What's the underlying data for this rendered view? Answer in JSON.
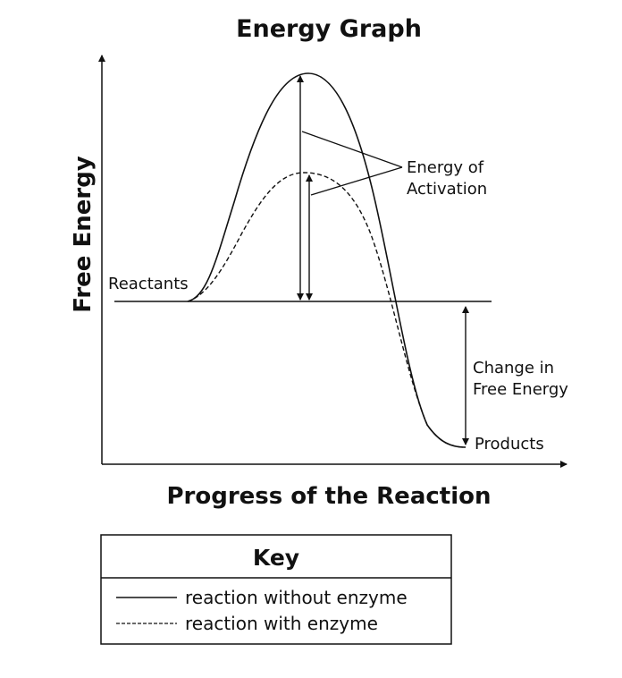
{
  "title": "Energy Graph",
  "x_axis_label": "Progress of the Reaction",
  "y_axis_label": "Free Energy",
  "labels": {
    "reactants": "Reactants",
    "products": "Products",
    "activation": [
      "Energy of",
      "Activation"
    ],
    "delta_g": [
      "Change in",
      "Free Energy"
    ]
  },
  "key": {
    "title": "Key",
    "items": [
      {
        "style": "solid",
        "label": "reaction without enzyme"
      },
      {
        "style": "dashed",
        "label": "reaction with enzyme"
      }
    ]
  },
  "colors": {
    "line": "#111111",
    "background": "#ffffff"
  }
}
